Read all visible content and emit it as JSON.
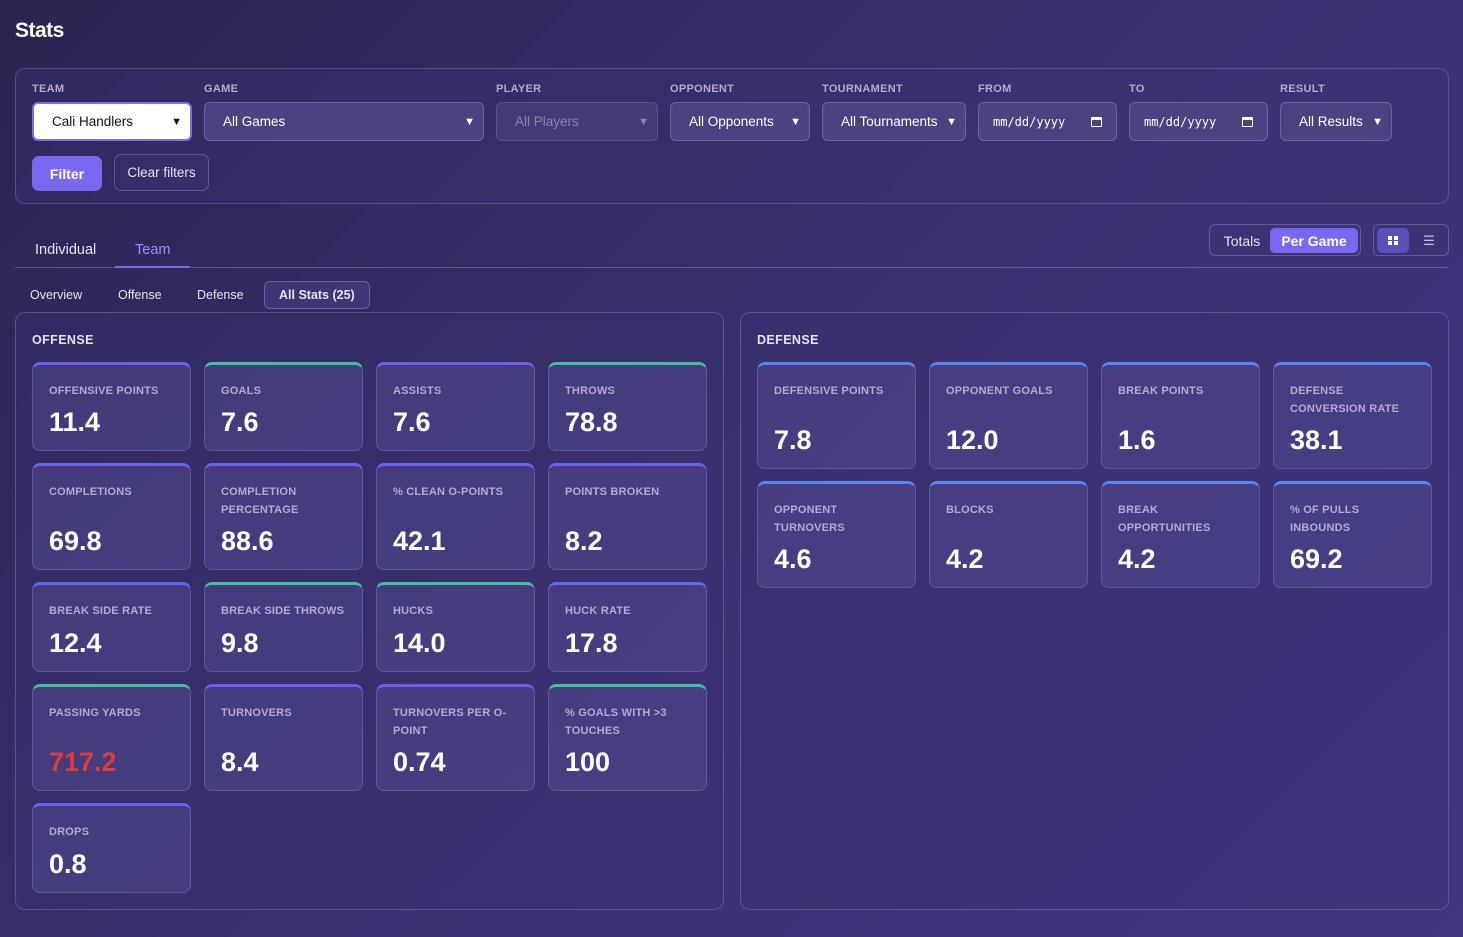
{
  "page": {
    "title": "Stats"
  },
  "filters": {
    "team": {
      "label": "TEAM",
      "value": "Cali Handlers"
    },
    "game": {
      "label": "GAME",
      "value": "All Games"
    },
    "player": {
      "label": "PLAYER",
      "value": "All Players"
    },
    "opponent": {
      "label": "OPPONENT",
      "value": "All Opponents"
    },
    "tournament": {
      "label": "TOURNAMENT",
      "value": "All Tournaments"
    },
    "from": {
      "label": "FROM",
      "value": "mm/dd/yyyy"
    },
    "to": {
      "label": "TO",
      "value": "mm/dd/yyyy"
    },
    "result": {
      "label": "RESULT",
      "value": "All Results"
    },
    "filter_button": "Filter",
    "clear_button": "Clear filters"
  },
  "tabs": {
    "individual": "Individual",
    "team": "Team"
  },
  "toggle": {
    "totals": "Totals",
    "per_game": "Per Game"
  },
  "subtabs": {
    "overview": "Overview",
    "offense": "Offense",
    "defense": "Defense",
    "all_stats": "All Stats (25)"
  },
  "offense": {
    "title": "OFFENSE",
    "cards": [
      {
        "label": "OFFENSIVE POINTS",
        "value": "11.4",
        "accent": "purple"
      },
      {
        "label": "GOALS",
        "value": "7.6",
        "accent": "teal"
      },
      {
        "label": "ASSISTS",
        "value": "7.6",
        "accent": "purple"
      },
      {
        "label": "THROWS",
        "value": "78.8",
        "accent": "teal"
      },
      {
        "label": "COMPLETIONS",
        "value": "69.8",
        "accent": "purple"
      },
      {
        "label": "COMPLETION PERCENTAGE",
        "value": "88.6",
        "accent": "purple"
      },
      {
        "label": "% CLEAN O-POINTS",
        "value": "42.1",
        "accent": "purple"
      },
      {
        "label": "POINTS BROKEN",
        "value": "8.2",
        "accent": "purple"
      },
      {
        "label": "BREAK SIDE RATE",
        "value": "12.4",
        "accent": "purple"
      },
      {
        "label": "BREAK SIDE THROWS",
        "value": "9.8",
        "accent": "teal"
      },
      {
        "label": "HUCKS",
        "value": "14.0",
        "accent": "teal"
      },
      {
        "label": "HUCK RATE",
        "value": "17.8",
        "accent": "purple"
      },
      {
        "label": "PASSING YARDS",
        "value": "717.2",
        "accent": "teal"
      },
      {
        "label": "TURNOVERS",
        "value": "8.4",
        "accent": "purple"
      },
      {
        "label": "TURNOVERS PER O-POINT",
        "value": "0.74",
        "accent": "purple"
      },
      {
        "label": "% GOALS WITH >3 TOUCHES",
        "value": "100",
        "accent": "teal"
      },
      {
        "label": "DROPS",
        "value": "0.8",
        "accent": "purple"
      }
    ]
  },
  "defense": {
    "title": "DEFENSE",
    "cards": [
      {
        "label": "DEFENSIVE POINTS",
        "value": "7.8",
        "accent": "blue"
      },
      {
        "label": "OPPONENT GOALS",
        "value": "12.0",
        "accent": "blue"
      },
      {
        "label": "BREAK POINTS",
        "value": "1.6",
        "accent": "blue"
      },
      {
        "label": "DEFENSE CONVERSION RATE",
        "value": "38.1",
        "accent": "blue"
      },
      {
        "label": "OPPONENT TURNOVERS",
        "value": "4.6",
        "accent": "blue"
      },
      {
        "label": "BLOCKS",
        "value": "4.2",
        "accent": "blue"
      },
      {
        "label": "BREAK OPPORTUNITIES",
        "value": "4.2",
        "accent": "blue"
      },
      {
        "label": "% OF PULLS INBOUNDS",
        "value": "69.2",
        "accent": "blue"
      }
    ]
  },
  "colors": {
    "accent": "#7b68f0",
    "teal": "#3fc0a0",
    "blue": "#5a84f0",
    "alert": "#e03c3c"
  }
}
